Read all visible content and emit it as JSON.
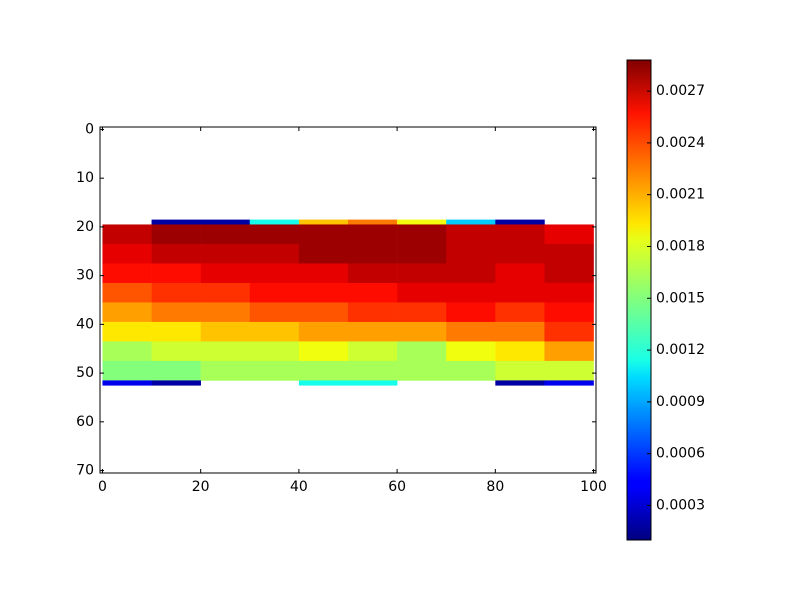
{
  "chart_data": {
    "type": "heatmap",
    "x": [
      0,
      10,
      20,
      30,
      40,
      50,
      60,
      70,
      80,
      90,
      100
    ],
    "y": [
      18.5,
      19.5,
      23.5,
      27.5,
      31.5,
      35.5,
      39.5,
      43.5,
      47.5,
      51.5,
      52.5
    ],
    "z": [
      [
        null,
        0.0002,
        0.0002,
        0.0012,
        0.002,
        0.0022,
        0.0018,
        0.001,
        0.0002,
        null
      ],
      [
        0.0027,
        0.0028,
        0.0028,
        0.0028,
        0.0028,
        0.0028,
        0.0028,
        0.0027,
        0.0027,
        0.0026
      ],
      [
        0.0026,
        0.0027,
        0.0027,
        0.0027,
        0.0028,
        0.0028,
        0.0028,
        0.0027,
        0.0027,
        0.0027
      ],
      [
        0.0025,
        0.0025,
        0.0026,
        0.0026,
        0.0026,
        0.0027,
        0.0027,
        0.0027,
        0.0026,
        0.0027
      ],
      [
        0.0023,
        0.0024,
        0.0024,
        0.0025,
        0.0025,
        0.0025,
        0.0026,
        0.0026,
        0.0026,
        0.0026
      ],
      [
        0.0021,
        0.0022,
        0.0022,
        0.0023,
        0.0023,
        0.0024,
        0.0024,
        0.0025,
        0.0024,
        0.0025
      ],
      [
        0.0019,
        0.0019,
        0.002,
        0.002,
        0.0021,
        0.0021,
        0.0021,
        0.0022,
        0.0022,
        0.0024
      ],
      [
        0.0016,
        0.0017,
        0.0017,
        0.0017,
        0.0018,
        0.0017,
        0.0016,
        0.0018,
        0.0019,
        0.0021
      ],
      [
        0.0015,
        0.0015,
        0.0016,
        0.0016,
        0.0016,
        0.0016,
        0.0016,
        0.0016,
        0.0017,
        0.0017
      ],
      [
        0.0004,
        0.0002,
        null,
        null,
        0.0012,
        0.0012,
        null,
        null,
        0.0002,
        0.0004
      ]
    ],
    "colormap": "jet",
    "clim": [
      0.0001,
      0.00288
    ],
    "cticks": [
      0.0003,
      0.0006,
      0.0009,
      0.0012,
      0.0015,
      0.0018,
      0.0021,
      0.0024,
      0.0027
    ],
    "xlim": [
      -0.5,
      100.5
    ],
    "xticks": [
      0,
      20,
      40,
      60,
      80,
      100
    ],
    "ylim": [
      70.5,
      -0.5
    ],
    "yticks": [
      0,
      10,
      20,
      30,
      40,
      50,
      60,
      70
    ]
  }
}
